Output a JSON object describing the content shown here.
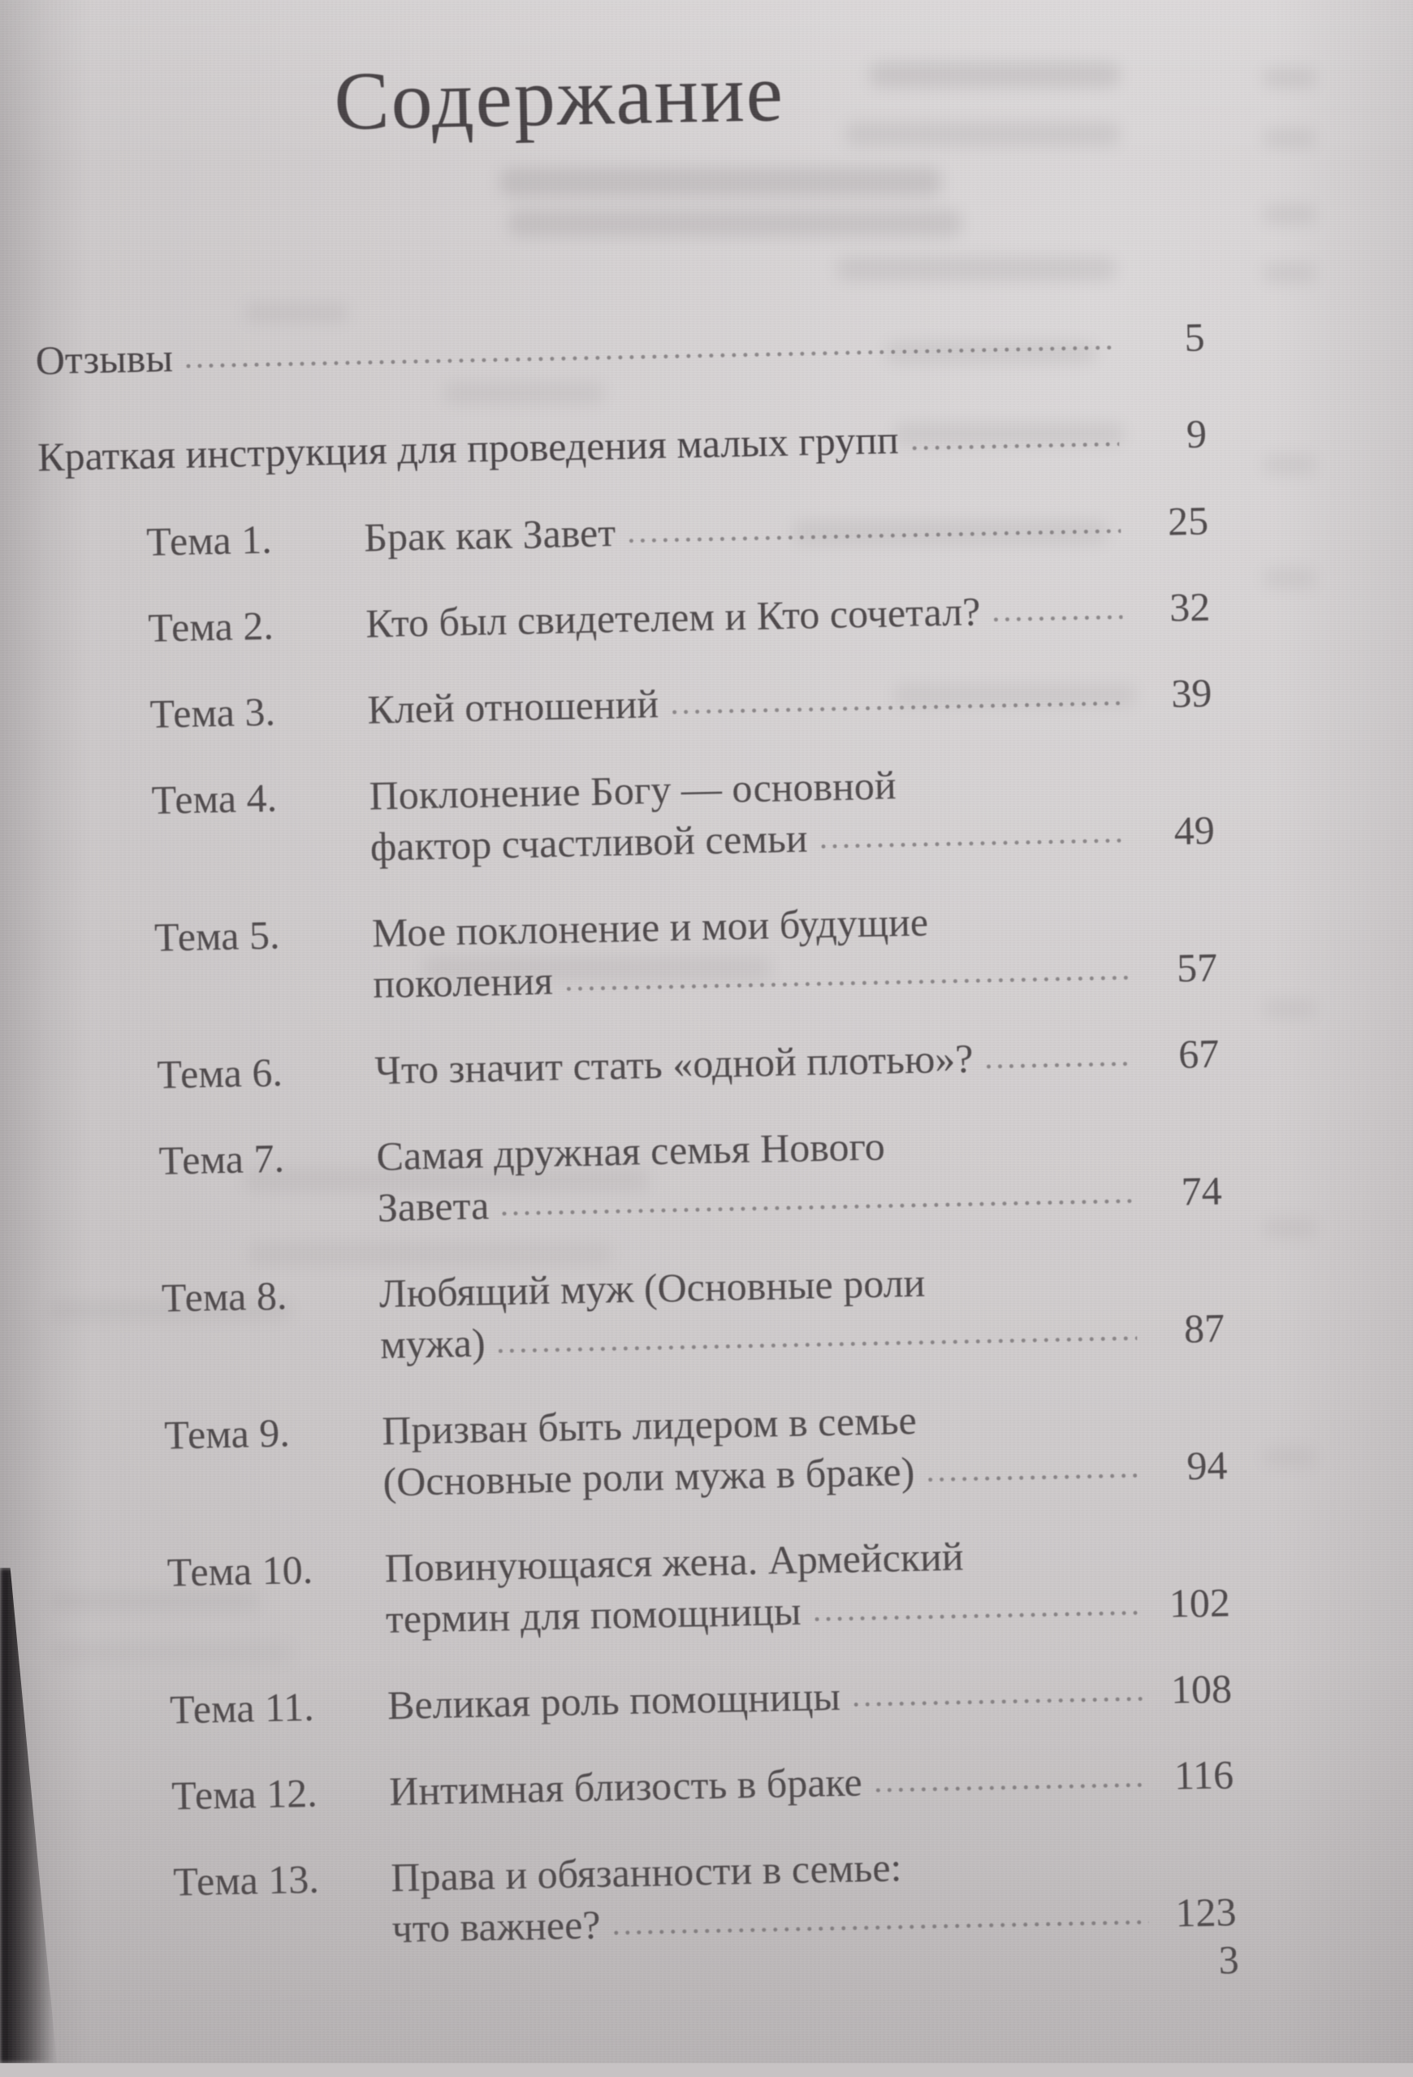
{
  "page": {
    "title": "Содержание",
    "folio": "3",
    "front_matter": [
      {
        "label": "Отзывы",
        "page": "5"
      },
      {
        "label": "Краткая инструкция для проведения малых групп",
        "page": "9"
      }
    ],
    "entries": [
      {
        "num": "Тема 1.",
        "lines": [
          "Брак как Завет"
        ],
        "page": "25"
      },
      {
        "num": "Тема 2.",
        "lines": [
          "Кто был свидетелем и Кто сочетал?"
        ],
        "page": "32"
      },
      {
        "num": "Тема 3.",
        "lines": [
          "Клей отношений"
        ],
        "page": "39"
      },
      {
        "num": "Тема 4.",
        "lines": [
          "Поклонение Богу — основной",
          "фактор счастливой семьи"
        ],
        "page": "49"
      },
      {
        "num": "Тема 5.",
        "lines": [
          "Мое поклонение и мои будущие",
          "поколения"
        ],
        "page": "57"
      },
      {
        "num": "Тема 6.",
        "lines": [
          "Что значит стать «одной плотью»?"
        ],
        "page": "67"
      },
      {
        "num": "Тема 7.",
        "lines": [
          "Самая дружная семья Нового",
          "Завета"
        ],
        "page": "74"
      },
      {
        "num": "Тема 8.",
        "lines": [
          "Любящий муж (Основные роли",
          "мужа)"
        ],
        "page": "87"
      },
      {
        "num": "Тема 9.",
        "lines": [
          "Призван быть лидером в семье",
          "(Основные роли мужа в браке)"
        ],
        "page": "94"
      },
      {
        "num": "Тема 10.",
        "lines": [
          "Повинующаяся жена. Армейский",
          "термин для помощницы"
        ],
        "page": "102"
      },
      {
        "num": "Тема 11.",
        "lines": [
          "Великая роль помощницы"
        ],
        "page": "108"
      },
      {
        "num": "Тема 12.",
        "lines": [
          "Интимная близость в браке"
        ],
        "page": "116"
      },
      {
        "num": "Тема 13.",
        "lines": [
          "Права и обязанности в семье:",
          "что важнее?"
        ],
        "page": "123"
      }
    ]
  }
}
